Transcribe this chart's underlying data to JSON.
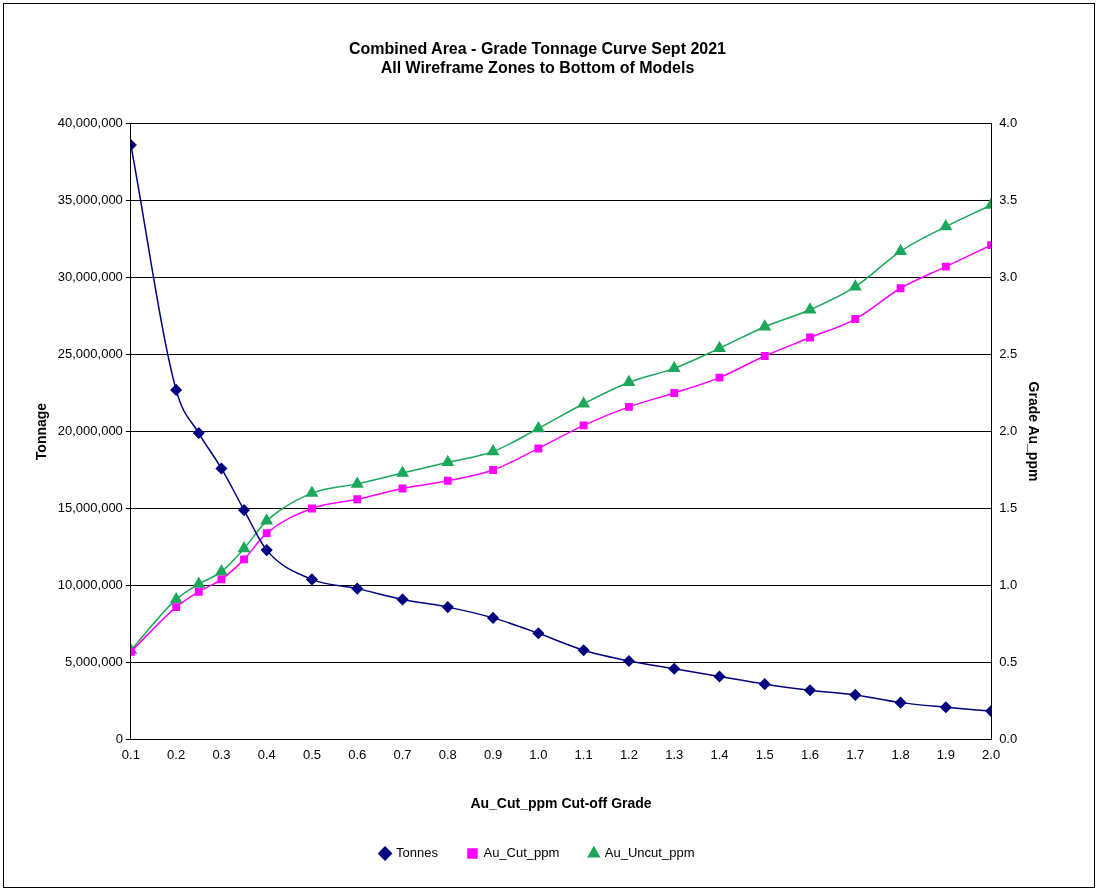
{
  "chart_data": {
    "type": "line",
    "title": "Combined Area - Grade Tonnage Curve Sept 2021\nAll Wireframe Zones to Bottom of Models",
    "xlabel": "Au_Cut_ppm Cut-off Grade",
    "ylabel": "Tonnage",
    "y2label": "Grade Au_ppm",
    "x": [
      0.1,
      0.2,
      0.25,
      0.3,
      0.35,
      0.4,
      0.5,
      0.6,
      0.7,
      0.8,
      0.9,
      1.0,
      1.1,
      1.2,
      1.3,
      1.4,
      1.5,
      1.6,
      1.7,
      1.8,
      1.9,
      2.0
    ],
    "series": [
      {
        "name": "Tonnes",
        "color": "#000080",
        "marker": "diamond",
        "values": [
          38600000,
          22700000,
          19900000,
          17600000,
          14900000,
          12300000,
          10400000,
          9800000,
          9100000,
          8600000,
          7900000,
          6900000,
          5800000,
          5100000,
          4600000,
          4100000,
          3600000,
          3200000,
          2900000,
          2400000,
          2100000,
          1850000
        ]
      },
      {
        "name": "Au_Cut_ppm",
        "color": "#ff00ff",
        "marker": "square",
        "axis": "y2",
        "values": [
          0.57,
          0.86,
          0.96,
          1.04,
          1.17,
          1.34,
          1.5,
          1.56,
          1.63,
          1.68,
          1.75,
          1.89,
          2.04,
          2.16,
          2.25,
          2.35,
          2.49,
          2.61,
          2.73,
          2.93,
          3.07,
          3.21
        ]
      },
      {
        "name": "Au_Uncut_ppm",
        "color": "#1aa85a",
        "marker": "triangle",
        "axis": "y2",
        "values": [
          0.58,
          0.91,
          1.01,
          1.09,
          1.24,
          1.42,
          1.6,
          1.66,
          1.73,
          1.8,
          1.87,
          2.02,
          2.18,
          2.32,
          2.41,
          2.54,
          2.68,
          2.79,
          2.94,
          3.17,
          3.33,
          3.47
        ]
      }
    ],
    "xlim": [
      0.1,
      2.0
    ],
    "xticks": [
      0.1,
      0.2,
      0.3,
      0.4,
      0.5,
      0.6,
      0.7,
      0.8,
      0.9,
      {
        "value": 1,
        "label": "1.0"
      },
      1.1,
      1.2,
      1.3,
      1.4,
      1.5,
      1.6,
      1.7,
      1.8,
      1.9,
      {
        "value": 2,
        "label": "2.0"
      }
    ],
    "ylim": [
      0,
      40000000
    ],
    "yticks": [
      0,
      {
        "value": 5000000,
        "label": "5,000,000"
      },
      {
        "value": 10000000,
        "label": "10,000,000"
      },
      {
        "value": 15000000,
        "label": "15,000,000"
      },
      {
        "value": 20000000,
        "label": "20,000,000"
      },
      {
        "value": 25000000,
        "label": "25,000,000"
      },
      {
        "value": 30000000,
        "label": "30,000,000"
      },
      {
        "value": 35000000,
        "label": "35,000,000"
      },
      {
        "value": 40000000,
        "label": "40,000,000"
      }
    ],
    "y2lim": [
      0,
      4
    ],
    "y2ticks": [
      {
        "value": 0,
        "label": "0.0"
      },
      0.5,
      {
        "value": 1,
        "label": "1.0"
      },
      1.5,
      {
        "value": 2,
        "label": "2.0"
      },
      2.5,
      {
        "value": 3,
        "label": "3.0"
      },
      3.5,
      {
        "value": 4,
        "label": "4.0"
      }
    ],
    "grid": "y",
    "legend": "bottom"
  }
}
